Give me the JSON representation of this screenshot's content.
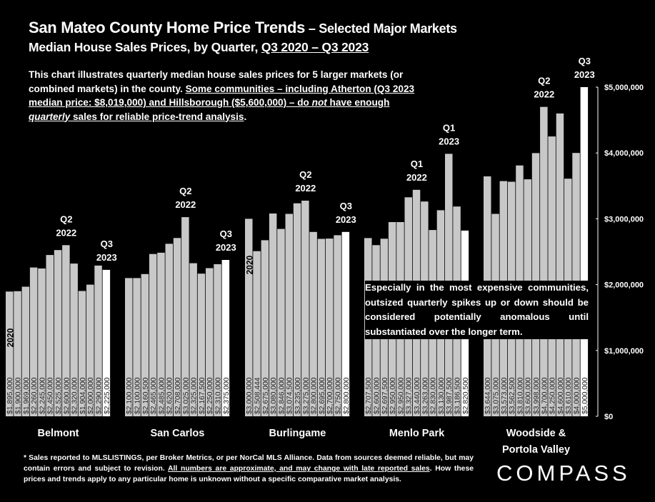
{
  "header": {
    "title_main": "San Mateo County Home Price Trends",
    "title_suffix": " – Selected Major Markets",
    "subtitle_lead": "Median House Sales Prices, by Quarter, ",
    "subtitle_range": "Q3 2020 – Q3 2023"
  },
  "intro": {
    "text_plain": "This chart illustrates quarterly median house sales prices for 5 larger markets (or combined markets) in the county. ",
    "text_u1": "Some communities – including Atherton (Q3 2023 median price: $8,019,000) and Hillsborough ($5,600,000) – do ",
    "text_u_not": "not",
    "text_u2": " have enough ",
    "text_u_quarterly": "quarterly",
    "text_u3": " sales for reliable price-trend analysis",
    "text_end": "."
  },
  "note": "Especially in the most expensive communities, outsized quarterly spikes up or down should be considered potentially anomalous until substantiated over the longer term.",
  "footnote": {
    "text_plain": "* Sales reported to MLSLISTINGS, per Broker Metrics, or per NorCal MLS Alliance. Data from sources deemed reliable, but may contain errors and subject to revision. ",
    "text_u": "All numbers are approximate, and may change with late reported sales",
    "text_end": ". How these prices and trends apply to any particular home is unknown without a specific comparative market analysis."
  },
  "logo": "COMPASS",
  "colors": {
    "background": "#000000",
    "bar": "#c8c8c8",
    "bar_latest": "#ffffff",
    "text": "#ffffff"
  },
  "chart_data": {
    "type": "bar",
    "ylim": [
      0,
      5000000
    ],
    "yticks": [
      "$0",
      "$1,000,000",
      "$2,000,000",
      "$3,000,000",
      "$4,000,000",
      "$5,000,000"
    ],
    "grid": false,
    "groups": [
      {
        "name": "Belmont",
        "name_line2": "",
        "values": [
          1895000,
          1900000,
          1969000,
          2260000,
          2245000,
          2450000,
          2525000,
          2600000,
          2320000,
          1904000,
          2000000,
          2290000,
          2225000
        ],
        "labels": [
          "$1,895,000",
          "$1,900,000",
          "$1,969,000",
          "$2,260,000",
          "$2,245,000",
          "$2,450,000",
          "$2,525,000",
          "$2,600,000",
          "$2,320,000",
          "$1,904,000",
          "$2,000,000",
          "$2,290,000",
          "$2,225,000"
        ],
        "annotations": [
          {
            "index": 0,
            "text": "2020",
            "vertical": true
          },
          {
            "index": 7,
            "line1": "Q2",
            "line2": "2022"
          },
          {
            "index": 12,
            "line1": "Q3",
            "line2": "2023"
          }
        ]
      },
      {
        "name": "San Carlos",
        "name_line2": "",
        "values": [
          2100000,
          2100000,
          2160500,
          2465000,
          2485000,
          2620000,
          2708000,
          3025000,
          2325000,
          2167500,
          2250000,
          2310000,
          2375000
        ],
        "labels": [
          "$2,100,000",
          "$2,100,000",
          "$2,160,500",
          "$2,465,000",
          "$2,485,000",
          "$2,620,000",
          "$2,708,000",
          "$3,025,000",
          "$2,325,000",
          "$2,167,500",
          "$2,250,000",
          "$2,310,000",
          "$2,375,000"
        ],
        "annotations": [
          {
            "index": 7,
            "line1": "Q2",
            "line2": "2022"
          },
          {
            "index": 12,
            "line1": "Q3",
            "line2": "2023"
          }
        ]
      },
      {
        "name": "Burlingame",
        "name_line2": "",
        "values": [
          3000000,
          2508444,
          2675000,
          3080000,
          2846000,
          3074500,
          3235000,
          3275000,
          2800000,
          2695000,
          2700000,
          2750000,
          2800000
        ],
        "labels": [
          "$3,000,000",
          "$2,508,444",
          "$2,675,000",
          "$3,080,000",
          "$2,846,000",
          "$3,074,500",
          "$3,235,000",
          "$3,275,000",
          "$2,800,000",
          "$2,695,000",
          "$2,700,000",
          "$2,750,000",
          "$2,800,000"
        ],
        "annotations": [
          {
            "index": 0,
            "text": "2020",
            "vertical": true
          },
          {
            "index": 7,
            "line1": "Q2",
            "line2": "2022"
          },
          {
            "index": 12,
            "line1": "Q3",
            "line2": "2023"
          }
        ]
      },
      {
        "name": "Menlo Park",
        "name_line2": "",
        "values": [
          2707500,
          2600000,
          2697500,
          2950000,
          2950000,
          3327000,
          3440000,
          3263000,
          2830000,
          3130000,
          3987500,
          3186500,
          2820500
        ],
        "labels": [
          "$2,707,500",
          "$2,600,000",
          "$2,697,500",
          "$2,950,000",
          "$2,950,000",
          "$3,327,000",
          "$3,440,000",
          "$3,263,000",
          "$2,830,000",
          "$3,130,000",
          "$3,987,500",
          "$3,186,500",
          "$2,820,500"
        ],
        "annotations": [
          {
            "index": 6,
            "line1": "Q1",
            "line2": "2022"
          },
          {
            "index": 10,
            "line1": "Q1",
            "line2": "2023"
          }
        ]
      },
      {
        "name": "Woodside &",
        "name_line2": "Portola Valley",
        "values": [
          3644000,
          3075000,
          3573000,
          3562500,
          3810000,
          3600000,
          3998000,
          4700000,
          4250000,
          4600000,
          3610000,
          4000000,
          5000000
        ],
        "labels": [
          "$3,644,000",
          "$3,075,000",
          "$3,573,000",
          "$3,562,500",
          "$3,810,000",
          "$3,600,000",
          "$3,998,000",
          "$4,700,000",
          "$4,250,000",
          "$4,600,000",
          "$3,610,000",
          "$4,000,000",
          "$5,000,000"
        ],
        "annotations": [
          {
            "index": 7,
            "line1": "Q2",
            "line2": "2022"
          },
          {
            "index": 12,
            "line1": "Q3",
            "line2": "2023"
          }
        ]
      }
    ]
  }
}
